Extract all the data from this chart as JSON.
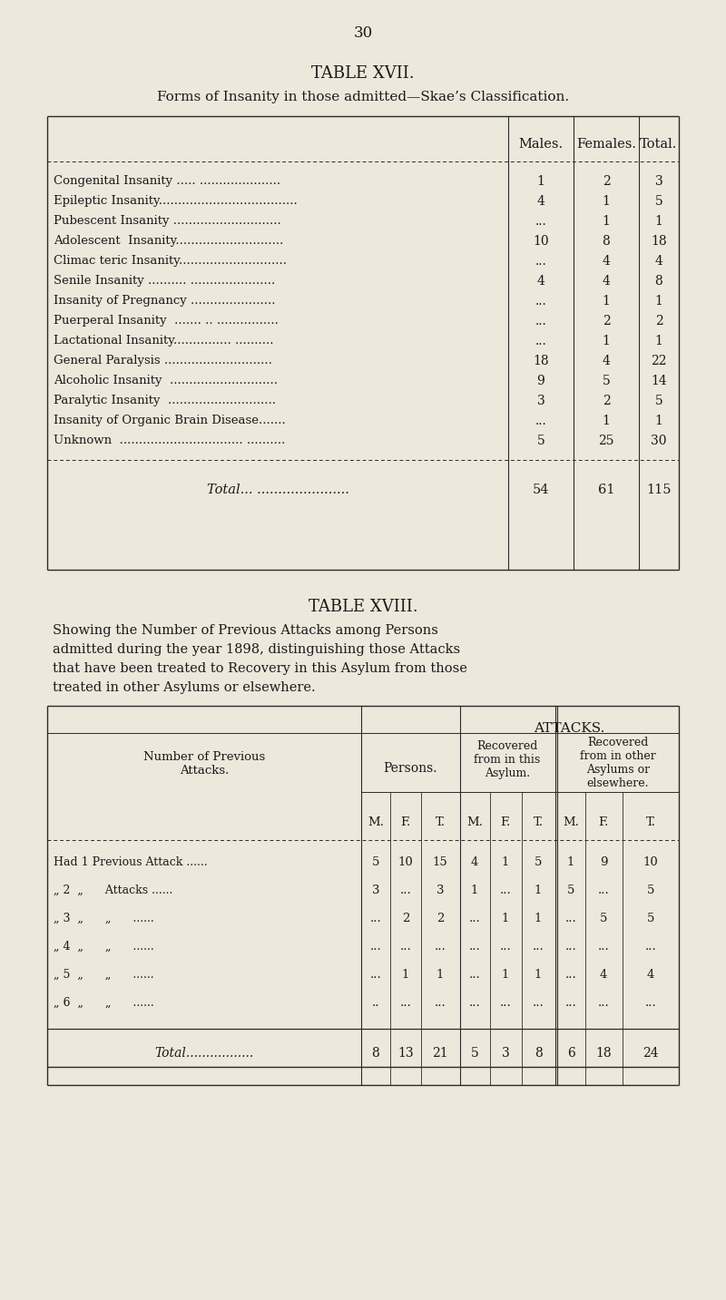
{
  "bg_color": "#ede8dc",
  "text_color": "#1a1a1a",
  "page_number": "30",
  "table17": {
    "title": "TABLE XVII.",
    "subtitle": "Forms of Insanity in those admitted—Skae’s Classification.",
    "headers": [
      "",
      "Males.",
      "Females.",
      "Total."
    ],
    "rows": [
      [
        "Congenital Insanity ..... .....................",
        "1",
        "2",
        "3"
      ],
      [
        "Epileptic Insanity....................................",
        "4",
        "1",
        "5"
      ],
      [
        "Pubescent Insanity ............................",
        "...",
        "1",
        "1"
      ],
      [
        "Adolescent  Insanity............................",
        "10",
        "8",
        "18"
      ],
      [
        "Climac teric Insanity............................",
        "...",
        "4",
        "4"
      ],
      [
        "Senile Insanity .......... ......................",
        "4",
        "4",
        "8"
      ],
      [
        "Insanity of Pregnancy ......................",
        "...",
        "1",
        "1"
      ],
      [
        "Puerperal Insanity  ....... .. ................",
        "...",
        "2",
        "2"
      ],
      [
        "Lactational Insanity............... ..........",
        "...",
        "1",
        "1"
      ],
      [
        "General Paralysis ............................",
        "18",
        "4",
        "22"
      ],
      [
        "Alcoholic Insanity  ............................",
        "9",
        "5",
        "14"
      ],
      [
        "Paralytic Insanity  ............................",
        "3",
        "2",
        "5"
      ],
      [
        "Insanity of Organic Brain Disease.......",
        "...",
        "1",
        "1"
      ],
      [
        "Unknown  ................................ ..........",
        "5",
        "25",
        "30"
      ]
    ],
    "total_row": [
      "Total... ......................",
      "54",
      "61",
      "115"
    ]
  },
  "table18": {
    "title": "TABLE XVIII.",
    "subtitle_lines": [
      "Showing the Number of Previous Attacks among Persons",
      "admitted during the year 1898, distinguishing those Attacks",
      "that have been treated to Recovery in this Asylum from those",
      "treated in other Asylums or elsewhere."
    ],
    "row_labels": [
      "Had 1 Previous Attack ......",
      "„ 2  „      Attacks ......",
      "„ 3  „      „      ......",
      "„ 4  „      „      ......",
      "„ 5  „      „      ......",
      "„ 6  „      „      ......"
    ],
    "rows": [
      [
        "5",
        "10",
        "15",
        "4",
        "1",
        "5",
        "1",
        "9",
        "10"
      ],
      [
        "3",
        "...",
        "3",
        "1",
        "...",
        "1",
        "5",
        "...",
        "5"
      ],
      [
        "...",
        "2",
        "2",
        "...",
        "1",
        "1",
        "...",
        "5",
        "5"
      ],
      [
        "...",
        "...",
        "...",
        "...",
        "...",
        "...",
        "...",
        "...",
        "..."
      ],
      [
        "...",
        "1",
        "1",
        "...",
        "1",
        "1",
        "...",
        "4",
        "4"
      ],
      [
        "..",
        "...",
        "...",
        "...",
        "...",
        "...",
        "...",
        "...",
        "..."
      ]
    ],
    "total_row": [
      "Total.................",
      "8",
      "13",
      "21",
      "5",
      "3",
      "8",
      "6",
      "18",
      "24"
    ]
  }
}
